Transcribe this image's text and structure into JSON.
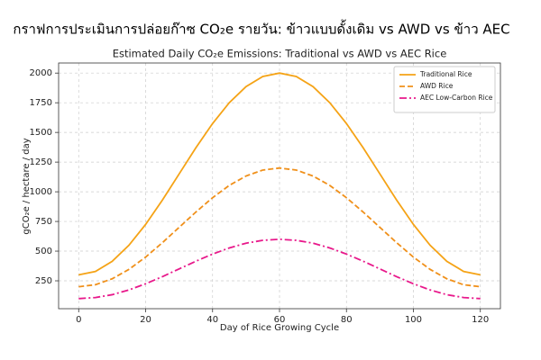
{
  "chart_data": {
    "type": "line",
    "suptitle": "กราฟการประเมินการปล่อยก๊าซ CO₂e รายวัน: ข้าวแบบดั้งเดิม vs AWD vs ข้าว AEC",
    "title": "Estimated Daily CO₂e Emissions: Traditional vs AWD vs AEC Rice",
    "x_label": "Day of Rice Growing Cycle",
    "y_label": "gCO₂e / hectare / day",
    "x": [
      0,
      5,
      10,
      15,
      20,
      25,
      30,
      35,
      40,
      45,
      50,
      55,
      60,
      65,
      70,
      75,
      80,
      85,
      90,
      95,
      100,
      105,
      110,
      115,
      120
    ],
    "series": [
      {
        "name": "Traditional Rice",
        "color": "#f5a316",
        "dash": "solid",
        "values": [
          300,
          329,
          414,
          549,
          725,
          930,
          1150,
          1370,
          1575,
          1751,
          1886,
          1971,
          2000,
          1971,
          1886,
          1751,
          1575,
          1370,
          1150,
          930,
          725,
          549,
          414,
          329,
          300
        ]
      },
      {
        "name": "AWD Rice",
        "color": "#f0901a",
        "dash": "dashed",
        "values": [
          200,
          217,
          267,
          346,
          450,
          571,
          700,
          829,
          950,
          1054,
          1133,
          1183,
          1200,
          1183,
          1133,
          1054,
          950,
          829,
          700,
          571,
          450,
          346,
          267,
          217,
          200
        ]
      },
      {
        "name": "AEC Low-Carbon Rice",
        "color": "#e8198b",
        "dash": "dashdot",
        "values": [
          100,
          109,
          133,
          173,
          225,
          285,
          350,
          415,
          475,
          527,
          567,
          591,
          600,
          591,
          567,
          527,
          475,
          415,
          350,
          285,
          225,
          173,
          133,
          109,
          100
        ]
      }
    ],
    "xlim": [
      -6,
      126
    ],
    "ylim": [
      15,
      2085
    ],
    "xticks": [
      0,
      20,
      40,
      60,
      80,
      100,
      120
    ],
    "yticks": [
      250,
      500,
      750,
      1000,
      1250,
      1500,
      1750,
      2000
    ],
    "grid": true,
    "legend": "upper right"
  }
}
